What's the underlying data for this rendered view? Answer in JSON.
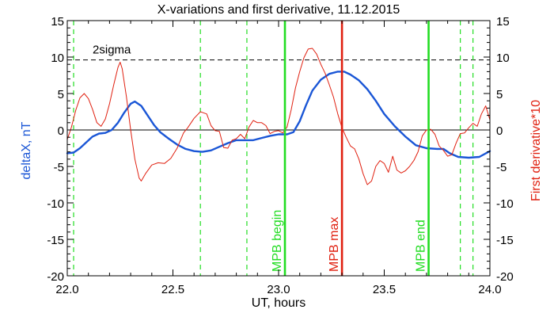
{
  "chart_data": {
    "type": "line",
    "title": "X-variations and first derivative, 11.12.2015",
    "xlabel": "UT, hours",
    "ylabel_left": "deltaX, nT",
    "ylabel_right": "First derivative*10",
    "xlim": [
      22.0,
      24.0
    ],
    "ylim": [
      -20,
      15
    ],
    "x_ticks": [
      "22.0",
      "22.5",
      "23.0",
      "23.5",
      "24.0"
    ],
    "y_ticks": [
      "15",
      "10",
      "5",
      "0",
      "-5",
      "-10",
      "-15",
      "-20"
    ],
    "zero_line": 0,
    "threshold": {
      "label": "2sigma",
      "value": 9.6
    },
    "markers": [
      {
        "label": "MPB begin",
        "x": 23.03,
        "color": "#22dd22"
      },
      {
        "label": "MPB max",
        "x": 23.3,
        "color": "#e02010"
      },
      {
        "label": "MPB end",
        "x": 23.71,
        "color": "#22dd22"
      }
    ],
    "dashed_markers_x": [
      22.03,
      22.63,
      22.85,
      23.86,
      23.92
    ],
    "series": [
      {
        "key": "deltaX",
        "color": "#1a56d6",
        "points": [
          [
            22.0,
            -3.2
          ],
          [
            22.03,
            -3.1
          ],
          [
            22.06,
            -2.5
          ],
          [
            22.09,
            -1.7
          ],
          [
            22.12,
            -0.9
          ],
          [
            22.15,
            -0.5
          ],
          [
            22.18,
            -0.4
          ],
          [
            22.21,
            0.0
          ],
          [
            22.24,
            1.0
          ],
          [
            22.27,
            2.4
          ],
          [
            22.3,
            3.6
          ],
          [
            22.32,
            3.9
          ],
          [
            22.35,
            3.3
          ],
          [
            22.38,
            2.0
          ],
          [
            22.41,
            0.7
          ],
          [
            22.44,
            -0.3
          ],
          [
            22.48,
            -1.2
          ],
          [
            22.52,
            -2.0
          ],
          [
            22.56,
            -2.6
          ],
          [
            22.6,
            -2.9
          ],
          [
            22.64,
            -3.0
          ],
          [
            22.68,
            -2.8
          ],
          [
            22.72,
            -2.3
          ],
          [
            22.76,
            -1.8
          ],
          [
            22.8,
            -1.4
          ],
          [
            22.84,
            -1.4
          ],
          [
            22.88,
            -1.4
          ],
          [
            22.92,
            -1.1
          ],
          [
            22.96,
            -0.8
          ],
          [
            23.0,
            -0.6
          ],
          [
            23.04,
            -0.6
          ],
          [
            23.07,
            -0.3
          ],
          [
            23.1,
            1.2
          ],
          [
            23.13,
            3.4
          ],
          [
            23.16,
            5.4
          ],
          [
            23.2,
            6.9
          ],
          [
            23.24,
            7.7
          ],
          [
            23.28,
            8.0
          ],
          [
            23.31,
            8.0
          ],
          [
            23.34,
            7.6
          ],
          [
            23.38,
            6.8
          ],
          [
            23.42,
            5.6
          ],
          [
            23.46,
            4.0
          ],
          [
            23.5,
            2.2
          ],
          [
            23.55,
            0.5
          ],
          [
            23.6,
            -0.9
          ],
          [
            23.65,
            -2.1
          ],
          [
            23.7,
            -2.5
          ],
          [
            23.75,
            -2.6
          ],
          [
            23.78,
            -2.6
          ],
          [
            23.81,
            -3.2
          ],
          [
            23.85,
            -3.7
          ],
          [
            23.9,
            -3.8
          ],
          [
            23.95,
            -3.7
          ],
          [
            24.0,
            -2.9
          ]
        ]
      },
      {
        "key": "derivative",
        "color": "#e02010",
        "points": [
          [
            22.0,
            -1.3
          ],
          [
            22.02,
            0.4
          ],
          [
            22.04,
            2.7
          ],
          [
            22.06,
            4.4
          ],
          [
            22.08,
            5.0
          ],
          [
            22.1,
            4.3
          ],
          [
            22.12,
            2.8
          ],
          [
            22.14,
            1.0
          ],
          [
            22.16,
            0.5
          ],
          [
            22.18,
            1.5
          ],
          [
            22.2,
            3.6
          ],
          [
            22.22,
            6.2
          ],
          [
            22.24,
            8.6
          ],
          [
            22.25,
            9.3
          ],
          [
            22.26,
            8.4
          ],
          [
            22.28,
            4.5
          ],
          [
            22.3,
            0.0
          ],
          [
            22.32,
            -4.0
          ],
          [
            22.34,
            -6.6
          ],
          [
            22.35,
            -7.0
          ],
          [
            22.37,
            -6.0
          ],
          [
            22.4,
            -4.8
          ],
          [
            22.43,
            -4.5
          ],
          [
            22.46,
            -4.6
          ],
          [
            22.49,
            -3.9
          ],
          [
            22.52,
            -2.5
          ],
          [
            22.55,
            -0.4
          ],
          [
            22.57,
            0.3
          ],
          [
            22.6,
            1.6
          ],
          [
            22.63,
            2.5
          ],
          [
            22.66,
            2.2
          ],
          [
            22.68,
            0.6
          ],
          [
            22.7,
            -0.1
          ],
          [
            22.72,
            -0.2
          ],
          [
            22.74,
            -2.4
          ],
          [
            22.76,
            -2.5
          ],
          [
            22.78,
            -1.4
          ],
          [
            22.8,
            -1.2
          ],
          [
            22.82,
            -0.6
          ],
          [
            22.84,
            -1.2
          ],
          [
            22.86,
            0.4
          ],
          [
            22.88,
            1.3
          ],
          [
            22.9,
            1.0
          ],
          [
            22.92,
            1.0
          ],
          [
            22.94,
            0.6
          ],
          [
            22.96,
            -0.5
          ],
          [
            22.98,
            -0.2
          ],
          [
            23.0,
            -0.1
          ],
          [
            23.02,
            -0.4
          ],
          [
            23.04,
            0.4
          ],
          [
            23.06,
            2.8
          ],
          [
            23.08,
            5.8
          ],
          [
            23.1,
            8.0
          ],
          [
            23.12,
            9.9
          ],
          [
            23.14,
            11.1
          ],
          [
            23.16,
            11.2
          ],
          [
            23.18,
            10.4
          ],
          [
            23.2,
            9.0
          ],
          [
            23.22,
            7.8
          ],
          [
            23.24,
            6.2
          ],
          [
            23.26,
            4.5
          ],
          [
            23.28,
            2.2
          ],
          [
            23.3,
            0.3
          ],
          [
            23.32,
            -1.0
          ],
          [
            23.34,
            -2.2
          ],
          [
            23.36,
            -2.6
          ],
          [
            23.38,
            -4.0
          ],
          [
            23.4,
            -6.0
          ],
          [
            23.42,
            -7.5
          ],
          [
            23.44,
            -7.0
          ],
          [
            23.46,
            -5.0
          ],
          [
            23.48,
            -4.2
          ],
          [
            23.5,
            -4.6
          ],
          [
            23.52,
            -5.8
          ],
          [
            23.54,
            -3.6
          ],
          [
            23.56,
            -5.5
          ],
          [
            23.58,
            -5.9
          ],
          [
            23.6,
            -5.6
          ],
          [
            23.62,
            -5.0
          ],
          [
            23.64,
            -4.2
          ],
          [
            23.66,
            -3.0
          ],
          [
            23.68,
            -0.8
          ],
          [
            23.7,
            0.0
          ],
          [
            23.72,
            0.1
          ],
          [
            23.74,
            -0.6
          ],
          [
            23.76,
            -2.2
          ],
          [
            23.78,
            -2.8
          ],
          [
            23.8,
            -3.6
          ],
          [
            23.82,
            -3.4
          ],
          [
            23.84,
            -1.8
          ],
          [
            23.86,
            -0.5
          ],
          [
            23.88,
            -0.4
          ],
          [
            23.9,
            0.3
          ],
          [
            23.92,
            0.9
          ],
          [
            23.94,
            0.5
          ],
          [
            23.96,
            2.2
          ],
          [
            23.98,
            3.3
          ],
          [
            24.0,
            1.4
          ]
        ]
      }
    ],
    "colors": {
      "left_axis_label": "#1a56d6",
      "right_axis_label": "#e02010",
      "dashed_markers": "#22dd22",
      "threshold_line": "#000000"
    }
  }
}
